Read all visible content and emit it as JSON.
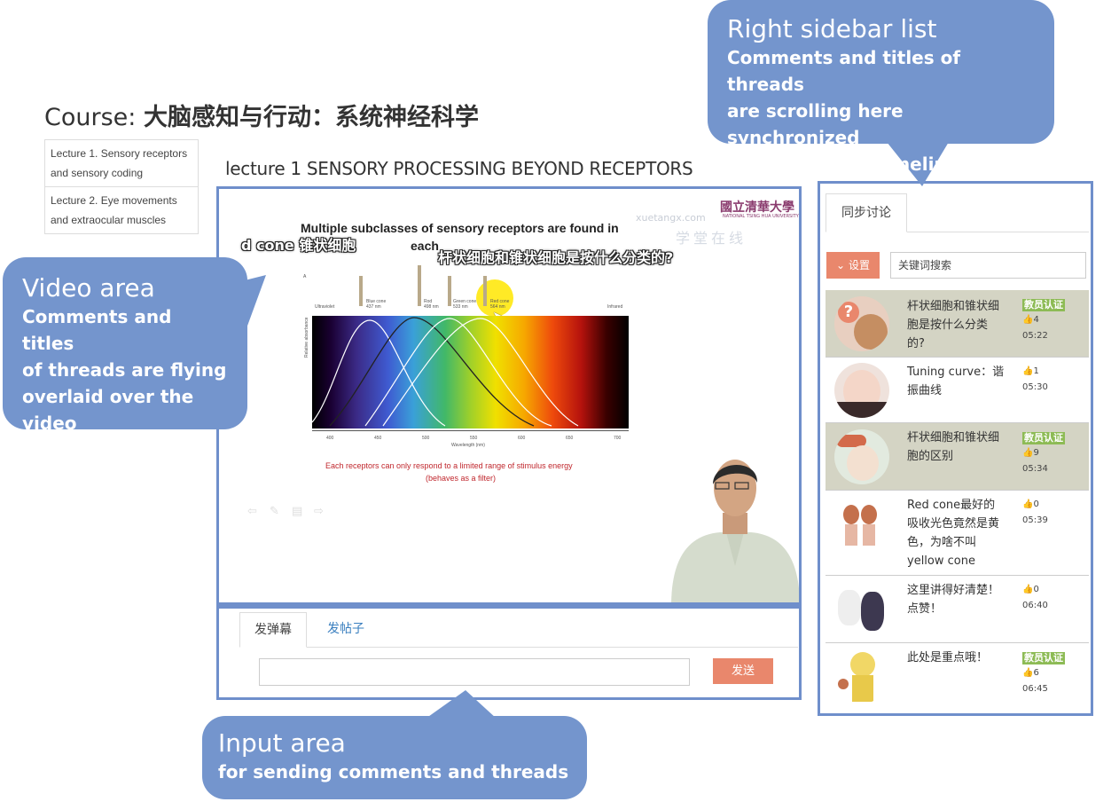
{
  "course": {
    "prefix": "Course: ",
    "name": "大脑感知与行动：系统神经科学"
  },
  "lectures": [
    {
      "label": "Lecture 1. Sensory receptors and sensory coding"
    },
    {
      "label": "Lecture 2. Eye movements and extraocular muscles"
    }
  ],
  "lecture_heading": "lecture 1 SENSORY PROCESSING BEYOND RECEPTORS",
  "video": {
    "slide_title_line1": "Multiple subclasses of sensory receptors are found in",
    "slide_title_line2": "each",
    "danmu_1": "d cone 锥状细胞",
    "danmu_2": "杆状细胞和锥状细胞是按什么分类的?",
    "logo_zh": "國立清華大學",
    "logo_en": "NATIONAL TSING HUA UNIVERSITY",
    "watermark_url": "xuetangx.com",
    "watermark_cn": "学堂在线",
    "panel_label": "A",
    "ultraviolet": "Ultraviolet",
    "infrared": "Infrared",
    "receptors": [
      {
        "name": "Blue cone",
        "nm": "437 nm"
      },
      {
        "name": "Rod",
        "nm": "498 nm"
      },
      {
        "name": "Green cone",
        "nm": "533 nm"
      },
      {
        "name": "Red cone",
        "nm": "564 nm"
      }
    ],
    "y_axis_label": "Relative absorbance",
    "x_axis_label": "Wavelength (nm)",
    "x_ticks": [
      "400",
      "450",
      "500",
      "550",
      "600",
      "650",
      "700"
    ],
    "filter_line1": "Each receptors can only respond to a limited range of stimulus energy",
    "filter_line2": "(behaves as a filter)"
  },
  "input_area": {
    "tab_active": "发弹幕",
    "tab_other": "发帖子",
    "input_value": "",
    "send_label": "发送"
  },
  "sidebar": {
    "tab": "同步讨论",
    "settings_label": "设置",
    "search_placeholder": "关键词搜索",
    "threads": [
      {
        "title": "杆状细胞和锥状细胞是按什么分类的?",
        "badge": "教员认证",
        "likes": "4",
        "time": "05:22",
        "highlight": true
      },
      {
        "title": "Tuning curve：谐振曲线",
        "badge": "",
        "likes": "1",
        "time": "05:30",
        "highlight": false
      },
      {
        "title": "杆状细胞和锥状细胞的区别",
        "badge": "教员认证",
        "likes": "9",
        "time": "05:34",
        "highlight": true
      },
      {
        "title": "Red cone最好的吸收光色竟然是黄色，为啥不叫yellow cone",
        "badge": "",
        "likes": "0",
        "time": "05:39",
        "highlight": false
      },
      {
        "title": "这里讲得好清楚！点赞！",
        "badge": "",
        "likes": "0",
        "time": "06:40",
        "highlight": false
      },
      {
        "title": "此处是重点哦！",
        "badge": "教员认证",
        "likes": "6",
        "time": "06:45",
        "highlight": false
      }
    ]
  },
  "callouts": {
    "right": {
      "title": "Right sidebar  list",
      "body": [
        "Comments and titles of threads",
        "are scrolling here synchronized",
        "with the video timeline"
      ]
    },
    "video": {
      "title": "Video area",
      "body": [
        "Comments and titles",
        "of threads are flying",
        "overlaid over the",
        "video"
      ]
    },
    "input": {
      "title": "Input area",
      "body": [
        "for sending comments and threads"
      ]
    }
  },
  "colors": {
    "callout": "#7495cd",
    "frame": "#6f8fcb",
    "send": "#e9876c",
    "badge": "#8dbb55",
    "highlight_row": "#d4d4c4"
  }
}
